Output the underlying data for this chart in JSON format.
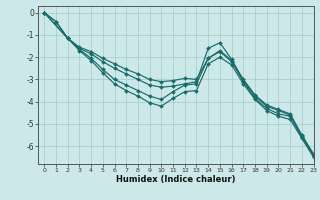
{
  "xlabel": "Humidex (Indice chaleur)",
  "xlim": [
    -0.5,
    23
  ],
  "ylim": [
    -6.8,
    0.3
  ],
  "xticks": [
    0,
    1,
    2,
    3,
    4,
    5,
    6,
    7,
    8,
    9,
    10,
    11,
    12,
    13,
    14,
    15,
    16,
    17,
    18,
    19,
    20,
    21,
    22,
    23
  ],
  "yticks": [
    0,
    -1,
    -2,
    -3,
    -4,
    -5,
    -6
  ],
  "line_color": "#1a6b6b",
  "bg_color": "#cce8e8",
  "grid_color": "#aacfcf",
  "lines": [
    {
      "x": [
        0,
        1,
        2,
        3,
        4,
        5,
        6,
        7,
        8,
        9,
        10,
        11,
        12,
        13,
        14,
        15,
        16,
        17,
        18,
        19,
        20,
        21,
        22,
        23
      ],
      "y": [
        0.0,
        -0.4,
        -1.15,
        -1.55,
        -1.75,
        -2.05,
        -2.3,
        -2.55,
        -2.75,
        -3.0,
        -3.1,
        -3.05,
        -2.95,
        -3.0,
        -2.05,
        -1.7,
        -2.15,
        -3.0,
        -3.7,
        -4.15,
        -4.35,
        -4.55,
        -5.5,
        -6.35
      ]
    },
    {
      "x": [
        0,
        1,
        2,
        3,
        4,
        5,
        6,
        7,
        8,
        9,
        10,
        11,
        12,
        13,
        14,
        15,
        16,
        17,
        18,
        19,
        20,
        21,
        22,
        23
      ],
      "y": [
        0.0,
        -0.4,
        -1.15,
        -1.6,
        -1.85,
        -2.2,
        -2.5,
        -2.75,
        -3.0,
        -3.25,
        -3.35,
        -3.3,
        -3.2,
        -3.1,
        -1.6,
        -1.35,
        -2.1,
        -3.05,
        -3.75,
        -4.2,
        -4.4,
        -4.6,
        -5.55,
        -6.4
      ]
    },
    {
      "x": [
        0,
        2,
        3,
        4,
        5,
        6,
        7,
        8,
        9,
        10,
        11,
        12,
        13,
        14,
        15,
        16,
        17,
        18,
        19,
        20,
        21,
        22,
        23
      ],
      "y": [
        0.0,
        -1.15,
        -1.65,
        -2.05,
        -2.55,
        -3.0,
        -3.25,
        -3.5,
        -3.75,
        -3.9,
        -3.55,
        -3.25,
        -3.2,
        -2.05,
        -1.75,
        -2.2,
        -3.1,
        -3.85,
        -4.3,
        -4.55,
        -4.65,
        -5.6,
        -6.45
      ]
    },
    {
      "x": [
        0,
        2,
        3,
        4,
        5,
        6,
        7,
        8,
        9,
        10,
        11,
        12,
        13,
        14,
        15,
        16,
        17,
        18,
        19,
        20,
        21,
        22,
        23
      ],
      "y": [
        0.0,
        -1.15,
        -1.7,
        -2.15,
        -2.7,
        -3.2,
        -3.5,
        -3.75,
        -4.05,
        -4.2,
        -3.85,
        -3.55,
        -3.5,
        -2.3,
        -2.0,
        -2.35,
        -3.2,
        -3.9,
        -4.4,
        -4.65,
        -4.8,
        -5.65,
        -6.5
      ]
    }
  ]
}
